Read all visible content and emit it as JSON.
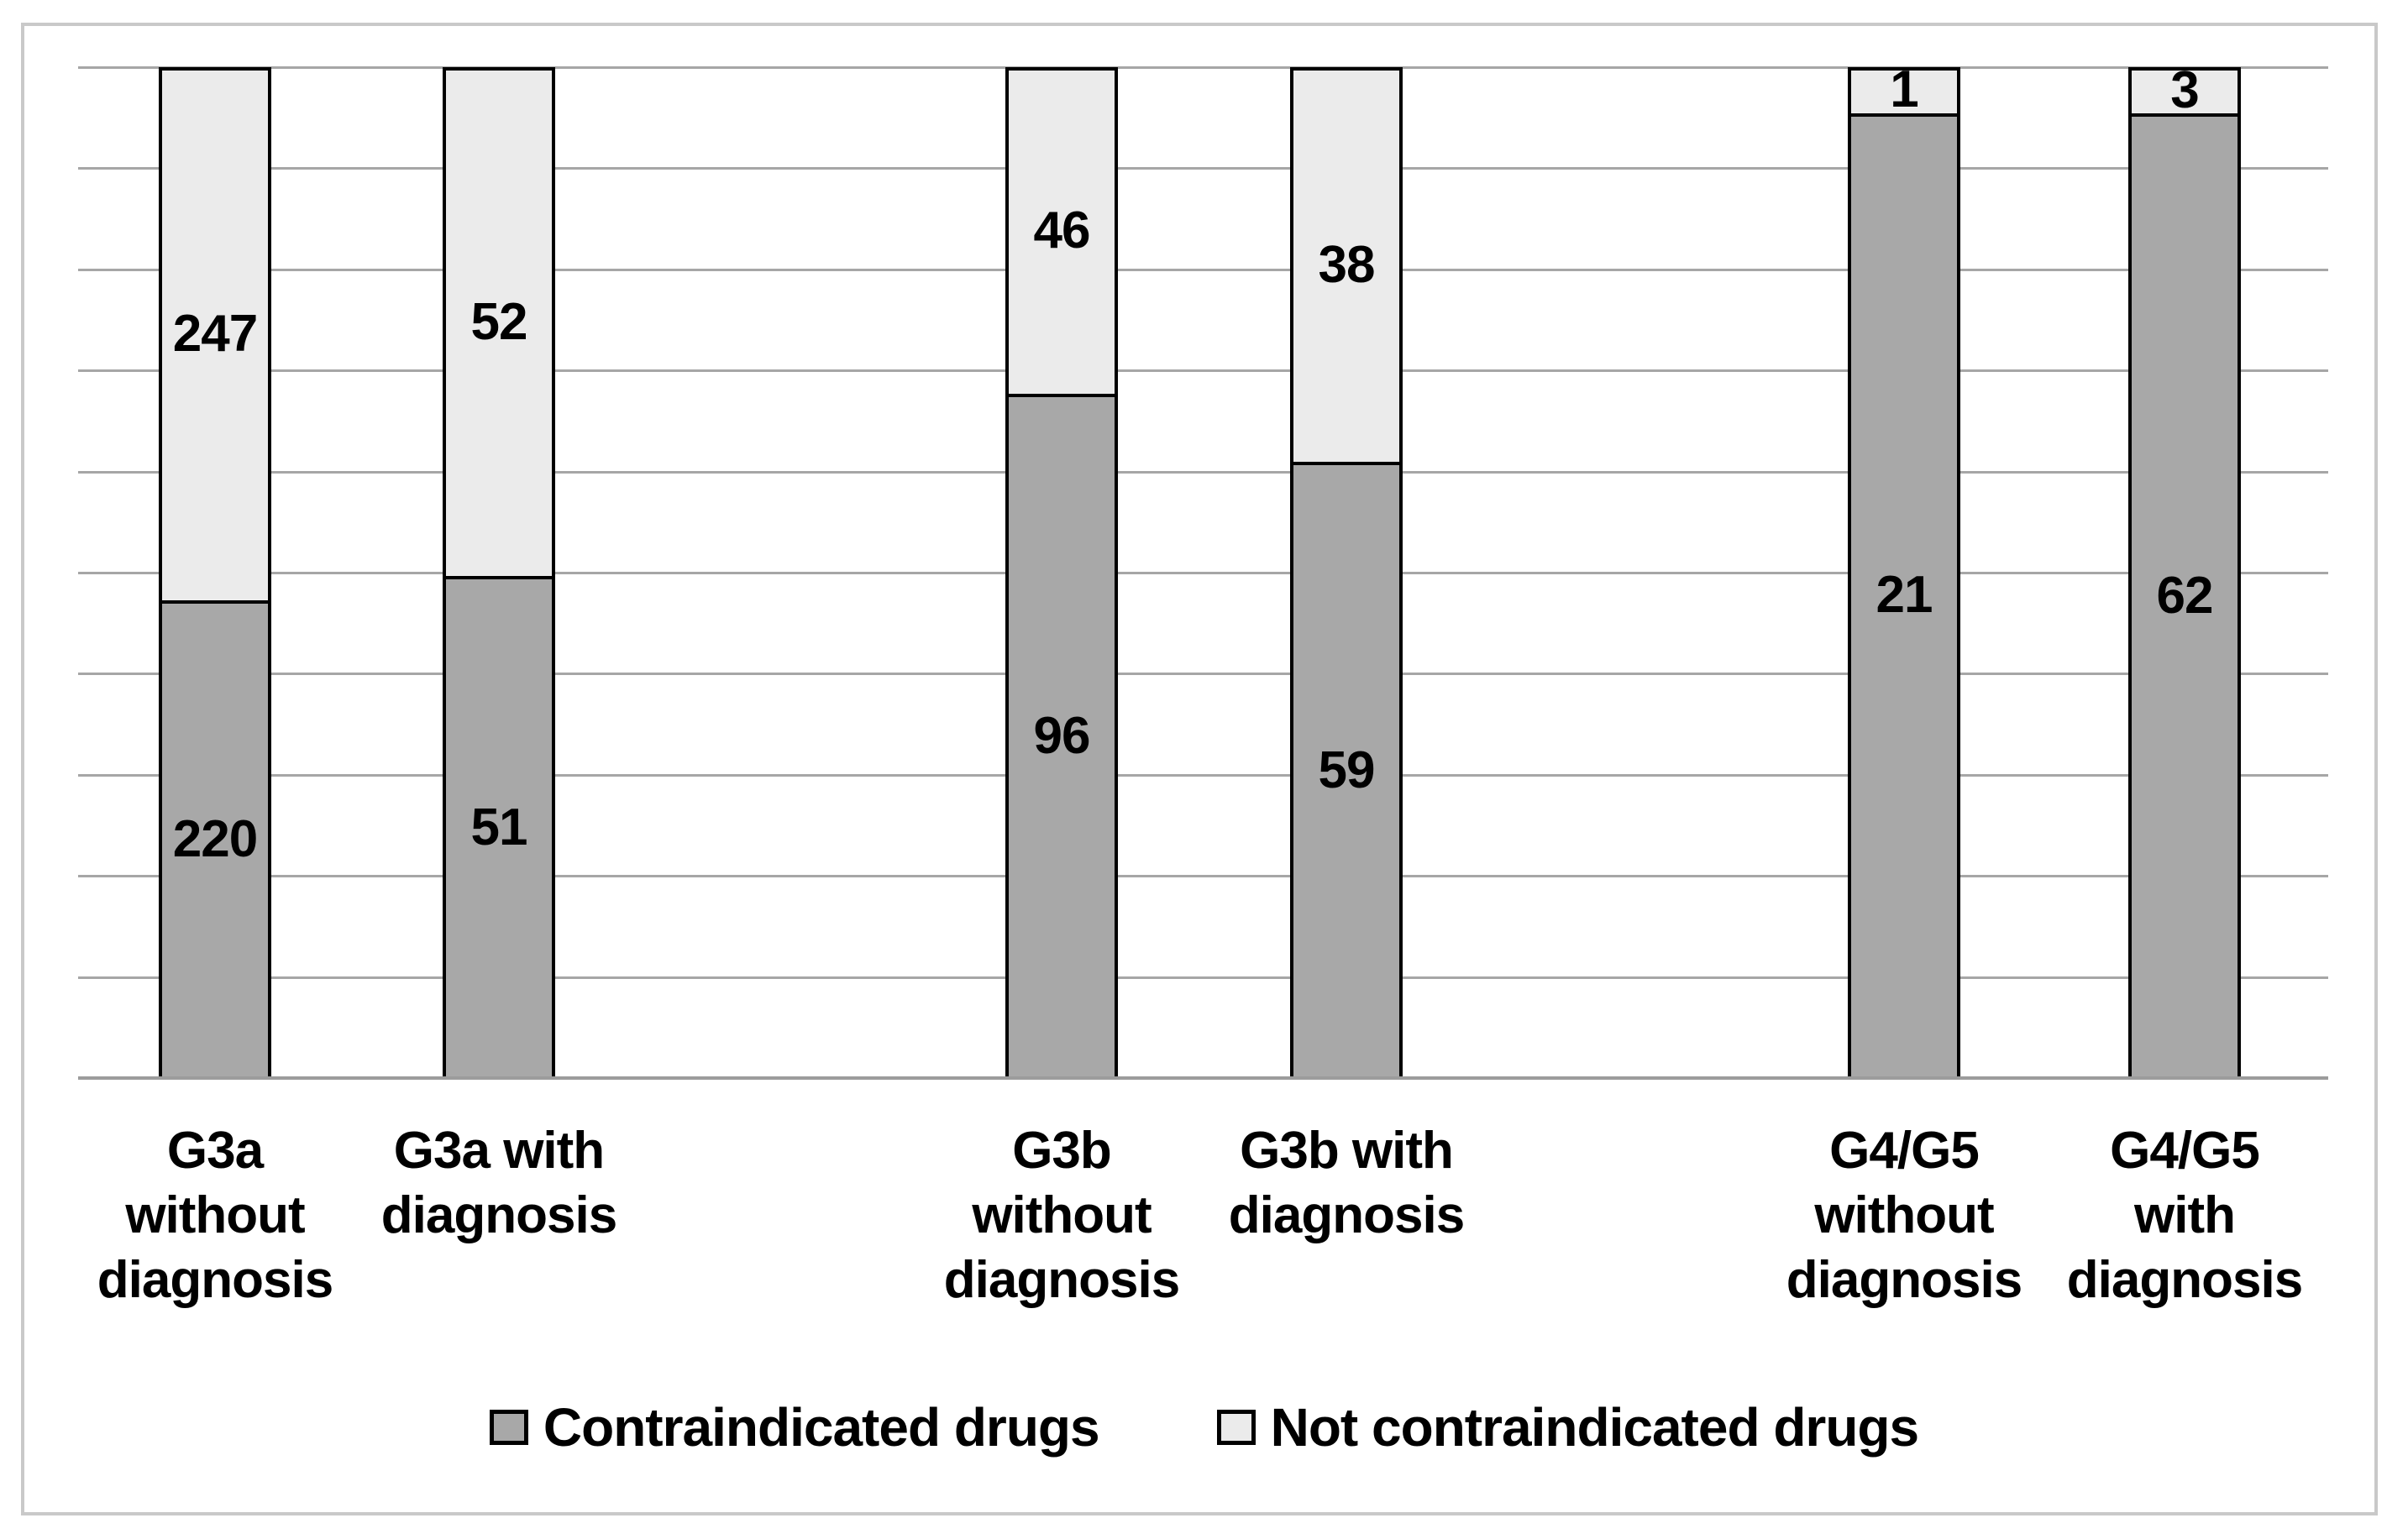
{
  "figure": {
    "background": "#ffffff",
    "frame_color": "#c9c9c9"
  },
  "legend": {
    "items": [
      {
        "label": "Contraindicated drugs",
        "color": "#a8a8a8"
      },
      {
        "label": "Not contraindicated drugs",
        "color": "#ebebeb"
      }
    ]
  },
  "colors": {
    "bar_border": "#000000",
    "gridline": "#a6a6a6",
    "axis_line": "#9c9c9c",
    "label_text": "#000000"
  },
  "chart_data": {
    "type": "bar",
    "subtype": "stacked-100-percent-column",
    "title": "",
    "xlabel": "",
    "ylabel": "",
    "categories": [
      "G3a without diagnosis",
      "G3a with diagnosis",
      "G3b without diagnosis",
      "G3b with diagnosis",
      "G4/G5 without diagnosis",
      "G4/G5 with diagnosis"
    ],
    "category_label_lines": [
      [
        "G3a",
        "without",
        "diagnosis"
      ],
      [
        "G3a with",
        "diagnosis"
      ],
      [
        "G3b",
        "without",
        "diagnosis"
      ],
      [
        "G3b with",
        "diagnosis"
      ],
      [
        "G4/G5",
        "without",
        "diagnosis"
      ],
      [
        "G4/G5",
        "with",
        "diagnosis"
      ]
    ],
    "series": [
      {
        "name": "Contraindicated drugs",
        "stack_position": "bottom",
        "color": "#a8a8a8",
        "values": [
          220,
          51,
          96,
          59,
          21,
          62
        ]
      },
      {
        "name": "Not contraindicated drugs",
        "stack_position": "top",
        "color": "#ebebeb",
        "values": [
          247,
          52,
          46,
          38,
          1,
          3
        ]
      }
    ],
    "value_labels_shown": true,
    "y_axis": {
      "type": "percent",
      "min": 0,
      "max": 100,
      "tick_labels_shown": false,
      "gridline_interval_percent": 10
    },
    "grid": "horizontal",
    "legend_position": "bottom"
  }
}
